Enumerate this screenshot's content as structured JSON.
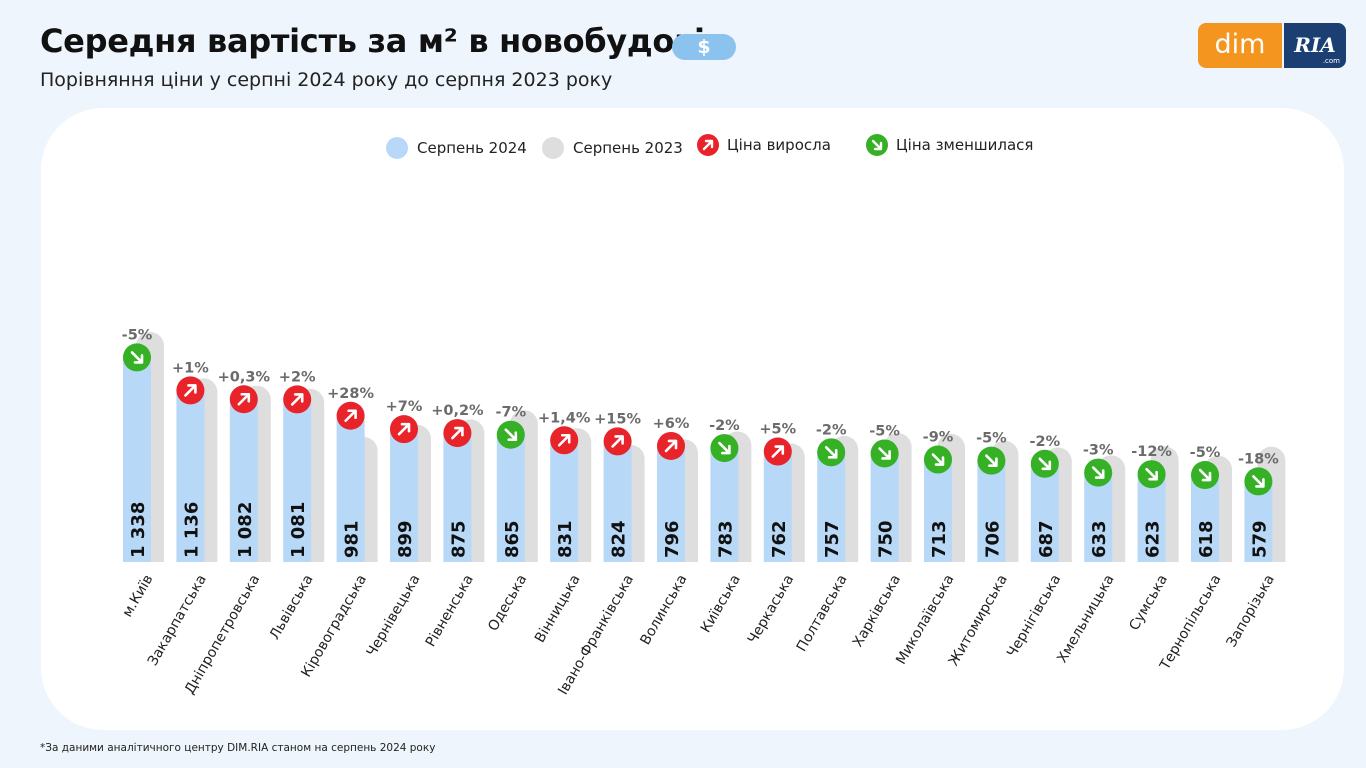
{
  "header": {
    "title": "Середня вартість за м² в новобудові",
    "badge": "$",
    "subtitle": "Порівняння ціни у серпні 2024 року до серпня 2023 року"
  },
  "logo": {
    "left": "dim",
    "right": "RIA",
    "right_sub": ".com"
  },
  "legend": [
    {
      "label": "Серпень 2024",
      "color": "#b7d9f7"
    },
    {
      "label": "Серпень 2023",
      "color": "#dedede"
    },
    {
      "label": "Ціна виросла",
      "color": "#e8232a"
    },
    {
      "label": "Ціна зменшилася",
      "color": "#36b024"
    }
  ],
  "footnote": "*За даними аналітичного центру DIM.RIA станом на серпень 2024 року",
  "chart_data": {
    "type": "bar",
    "categories": [
      "м.Київ",
      "Закарпатська",
      "Дніпропетровська",
      "Львівська",
      "Кіровоградська",
      "Чернівецька",
      "Рівненська",
      "Одеська",
      "Вінницька",
      "Івано-Франківська",
      "Волинська",
      "Київська",
      "Черкаська",
      "Полтавська",
      "Харківська",
      "Миколаївська",
      "Житомирська",
      "Чернігівська",
      "Хмельницька",
      "Сумська",
      "Тернопільська",
      "Запорізька"
    ],
    "series": [
      {
        "name": "Серпень 2024",
        "color": "#b7d9f7",
        "values": [
          1338,
          1136,
          1082,
          1081,
          981,
          899,
          875,
          865,
          831,
          824,
          796,
          783,
          762,
          757,
          750,
          713,
          706,
          687,
          633,
          623,
          618,
          579
        ]
      },
      {
        "name": "Серпень 2023",
        "color": "#dedede",
        "values": [
          1408,
          1125,
          1079,
          1060,
          766,
          840,
          873,
          930,
          819,
          717,
          751,
          799,
          726,
          772,
          789,
          784,
          743,
          701,
          653,
          708,
          651,
          706
        ]
      }
    ],
    "value_labels": [
      "1 338",
      "1 136",
      "1 082",
      "1 081",
      "981",
      "899",
      "875",
      "865",
      "831",
      "824",
      "796",
      "783",
      "762",
      "757",
      "750",
      "713",
      "706",
      "687",
      "633",
      "623",
      "618",
      "579"
    ],
    "changes": [
      "-5%",
      "+1%",
      "+0,3%",
      "+2%",
      "+28%",
      "+7%",
      "+0,2%",
      "-7%",
      "+1,4%",
      "+15%",
      "+6%",
      "-2%",
      "+5%",
      "-2%",
      "-5%",
      "-9%",
      "-5%",
      "-2%",
      "-3%",
      "-12%",
      "-5%",
      "-18%"
    ],
    "directions": [
      "down",
      "up",
      "up",
      "up",
      "up",
      "up",
      "up",
      "down",
      "up",
      "up",
      "up",
      "down",
      "up",
      "down",
      "down",
      "down",
      "down",
      "down",
      "down",
      "down",
      "down",
      "down"
    ],
    "up_color": "#e8232a",
    "down_color": "#36b024",
    "ylim": [
      0,
      1408
    ]
  }
}
